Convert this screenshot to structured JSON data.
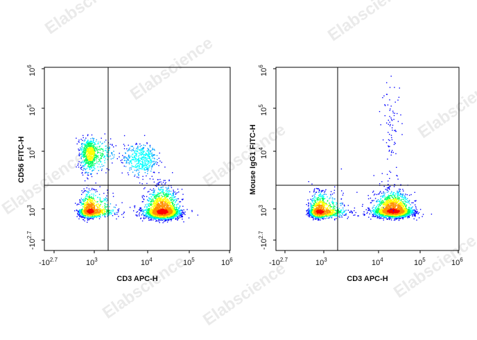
{
  "watermark": "Elabscience",
  "watermark_sup": "®",
  "colors": {
    "frame": "#000000",
    "density_scale": [
      "#0000ff",
      "#00a0ff",
      "#00ffff",
      "#00ff60",
      "#ffff00",
      "#ff9000",
      "#ff0000"
    ]
  },
  "chart_data": [
    {
      "type": "scatter",
      "subtype": "flow-cytometry-density-dot-plot",
      "xlabel": "CD3 APC-H",
      "ylabel": "CD56 FITC-H",
      "x_ticks": [
        {
          "base": "-10",
          "exp": "2.7"
        },
        {
          "base": "10",
          "exp": "3"
        },
        {
          "base": "10",
          "exp": "4"
        },
        {
          "base": "10",
          "exp": "5"
        },
        {
          "base": "10",
          "exp": "6"
        }
      ],
      "y_ticks": [
        {
          "base": "-10",
          "exp": "2.7"
        },
        {
          "base": "10",
          "exp": "3"
        },
        {
          "base": "10",
          "exp": "4"
        },
        {
          "base": "10",
          "exp": "5"
        },
        {
          "base": "10",
          "exp": "6"
        }
      ],
      "xlim": [
        -500,
        1000000
      ],
      "ylim": [
        -500,
        1000000
      ],
      "scale": "biexponential",
      "quadrant_gate": {
        "x": 1800,
        "y": 2300
      },
      "populations": [
        {
          "center": [
            600,
            750
          ],
          "spread": [
            0.28,
            0.2
          ],
          "count": 1300
        },
        {
          "center": [
            600,
            9500
          ],
          "spread": [
            0.26,
            0.16
          ],
          "count": 800
        },
        {
          "center": [
            7500,
            7500
          ],
          "spread": [
            0.16,
            0.14
          ],
          "count": 450
        },
        {
          "center": [
            22000,
            700
          ],
          "spread": [
            0.2,
            0.24
          ],
          "count": 2600
        }
      ]
    },
    {
      "type": "scatter",
      "subtype": "flow-cytometry-density-dot-plot",
      "xlabel": "CD3 APC-H",
      "ylabel": "Mouse IgG1 FITC-H",
      "x_ticks": [
        {
          "base": "-10",
          "exp": "2.7"
        },
        {
          "base": "10",
          "exp": "3"
        },
        {
          "base": "10",
          "exp": "4"
        },
        {
          "base": "10",
          "exp": "5"
        },
        {
          "base": "10",
          "exp": "6"
        }
      ],
      "y_ticks": [
        {
          "base": "-10",
          "exp": "2.7"
        },
        {
          "base": "10",
          "exp": "3"
        },
        {
          "base": "10",
          "exp": "4"
        },
        {
          "base": "10",
          "exp": "5"
        },
        {
          "base": "10",
          "exp": "6"
        }
      ],
      "xlim": [
        -500,
        1000000
      ],
      "ylim": [
        -500,
        1000000
      ],
      "scale": "biexponential",
      "quadrant_gate": {
        "x": 1800,
        "y": 2300
      },
      "populations": [
        {
          "center": [
            600,
            700
          ],
          "spread": [
            0.28,
            0.2
          ],
          "count": 1700
        },
        {
          "center": [
            22000,
            750
          ],
          "spread": [
            0.22,
            0.2
          ],
          "count": 2600
        },
        {
          "center": [
            20000,
            30000
          ],
          "spread": [
            0.12,
            0.6
          ],
          "count": 90
        }
      ]
    }
  ]
}
